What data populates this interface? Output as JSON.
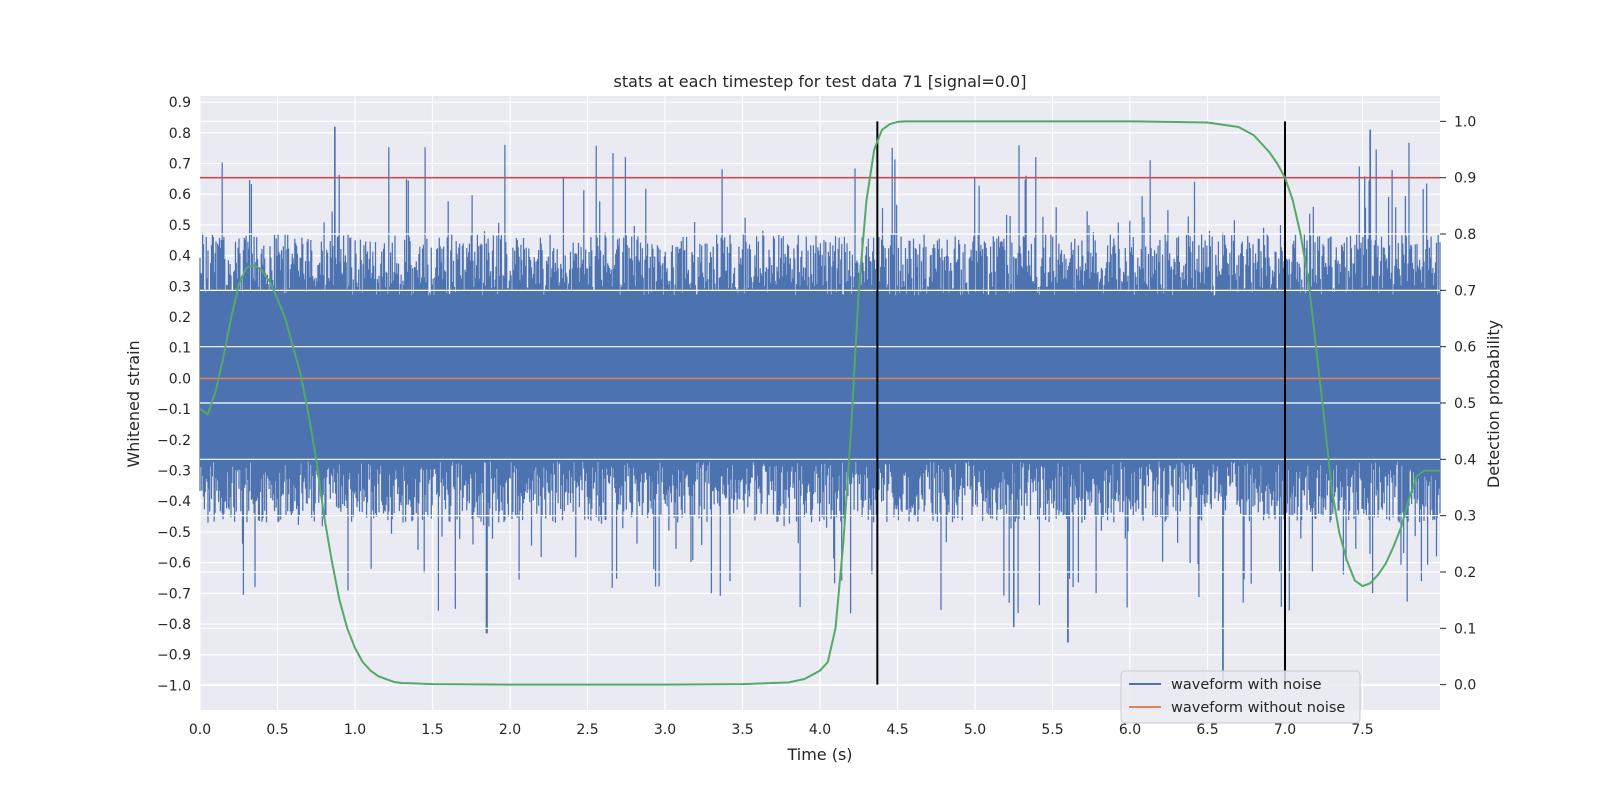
{
  "chart_data": {
    "type": "line",
    "title": "stats at each timestep for test data 71 [signal=0.0]",
    "xlabel": "Time (s)",
    "ylabel": "Whitened strain",
    "y2label": "Detection probability",
    "xlim": [
      0.0,
      8.0
    ],
    "ylim": [
      -1.08,
      0.92
    ],
    "y2lim": [
      -0.045,
      1.045
    ],
    "x_ticks": [
      0.0,
      0.5,
      1.0,
      1.5,
      2.0,
      2.5,
      3.0,
      3.5,
      4.0,
      4.5,
      5.0,
      5.5,
      6.0,
      6.5,
      7.0,
      7.5
    ],
    "x_tick_labels": [
      "0.0",
      "0.5",
      "1.0",
      "1.5",
      "2.0",
      "2.5",
      "3.0",
      "3.5",
      "4.0",
      "4.5",
      "5.0",
      "5.5",
      "6.0",
      "6.5",
      "7.0",
      "7.5"
    ],
    "y_ticks": [
      0.9,
      0.8,
      0.7,
      0.6,
      0.5,
      0.4,
      0.3,
      0.2,
      0.1,
      0.0,
      -0.1,
      -0.2,
      -0.3,
      -0.4,
      -0.5,
      -0.6,
      -0.7,
      -0.8,
      -0.9,
      -1.0
    ],
    "y_tick_labels": [
      "0.9",
      "0.8",
      "0.7",
      "0.6",
      "0.5",
      "0.4",
      "0.3",
      "0.2",
      "0.1",
      "0.0",
      "−0.1",
      "−0.2",
      "−0.3",
      "−0.4",
      "−0.5",
      "−0.6",
      "−0.7",
      "−0.8",
      "−0.9",
      "−1.0"
    ],
    "y2_ticks": [
      1.0,
      0.9,
      0.8,
      0.7,
      0.6,
      0.5,
      0.4,
      0.3,
      0.2,
      0.1,
      0.0
    ],
    "y2_tick_labels": [
      "1.0",
      "0.9",
      "0.8",
      "0.7",
      "0.6",
      "0.5",
      "0.4",
      "0.3",
      "0.2",
      "0.1",
      "0.0"
    ],
    "grid": true,
    "legend_position": "bottom-right",
    "series": [
      {
        "name": "waveform with noise",
        "axis": "left",
        "color": "#4c72b0",
        "style": "dense noise trace",
        "core_band": [
          -0.27,
          0.27
        ],
        "peak_range": [
          -1.0,
          0.82
        ],
        "notable_peaks": [
          {
            "x": 0.87,
            "y": 0.82
          },
          {
            "x": 7.55,
            "y": 0.81
          },
          {
            "x": 6.6,
            "y": -1.0
          },
          {
            "x": 1.85,
            "y": -0.83
          },
          {
            "x": 5.6,
            "y": -0.86
          },
          {
            "x": 5.25,
            "y": -0.81
          }
        ]
      },
      {
        "name": "waveform without noise",
        "axis": "left",
        "color": "#dd8452",
        "x": [
          0.0,
          8.0
        ],
        "y": [
          0.0,
          0.0
        ]
      },
      {
        "axis": "right",
        "color": "#55a868",
        "x": [
          0.0,
          0.05,
          0.1,
          0.15,
          0.2,
          0.25,
          0.3,
          0.35,
          0.4,
          0.45,
          0.5,
          0.55,
          0.6,
          0.65,
          0.7,
          0.75,
          0.8,
          0.85,
          0.9,
          0.95,
          1.0,
          1.05,
          1.1,
          1.15,
          1.2,
          1.25,
          1.3,
          1.4,
          1.5,
          2.0,
          2.5,
          3.0,
          3.5,
          3.8,
          3.9,
          4.0,
          4.05,
          4.1,
          4.15,
          4.2,
          4.25,
          4.3,
          4.35,
          4.4,
          4.45,
          4.5,
          4.55,
          4.6,
          4.7,
          5.0,
          6.0,
          6.5,
          6.7,
          6.8,
          6.85,
          6.9,
          6.95,
          7.0,
          7.05,
          7.1,
          7.15,
          7.2,
          7.25,
          7.3,
          7.35,
          7.4,
          7.45,
          7.5,
          7.55,
          7.6,
          7.65,
          7.7,
          7.75,
          7.8,
          7.85,
          7.9,
          7.95,
          8.0
        ],
        "y": [
          0.49,
          0.48,
          0.52,
          0.58,
          0.65,
          0.71,
          0.74,
          0.745,
          0.735,
          0.715,
          0.685,
          0.65,
          0.6,
          0.55,
          0.48,
          0.4,
          0.3,
          0.22,
          0.15,
          0.1,
          0.065,
          0.04,
          0.025,
          0.015,
          0.01,
          0.005,
          0.003,
          0.002,
          0.001,
          0.0,
          0.0,
          0.0,
          0.001,
          0.004,
          0.01,
          0.025,
          0.04,
          0.1,
          0.25,
          0.45,
          0.7,
          0.86,
          0.95,
          0.985,
          0.995,
          0.999,
          1.0,
          1.0,
          1.0,
          1.0,
          1.0,
          0.998,
          0.99,
          0.975,
          0.96,
          0.945,
          0.925,
          0.9,
          0.86,
          0.8,
          0.72,
          0.6,
          0.48,
          0.35,
          0.27,
          0.22,
          0.185,
          0.175,
          0.18,
          0.195,
          0.215,
          0.245,
          0.28,
          0.33,
          0.37,
          0.38,
          0.38,
          0.38
        ]
      }
    ],
    "thresholds": [
      {
        "axis": "right",
        "y": 0.9,
        "color": "#c44e52"
      }
    ],
    "vertical_markers": [
      {
        "x": 4.37,
        "color": "#000000"
      },
      {
        "x": 7.0,
        "color": "#000000"
      }
    ]
  }
}
